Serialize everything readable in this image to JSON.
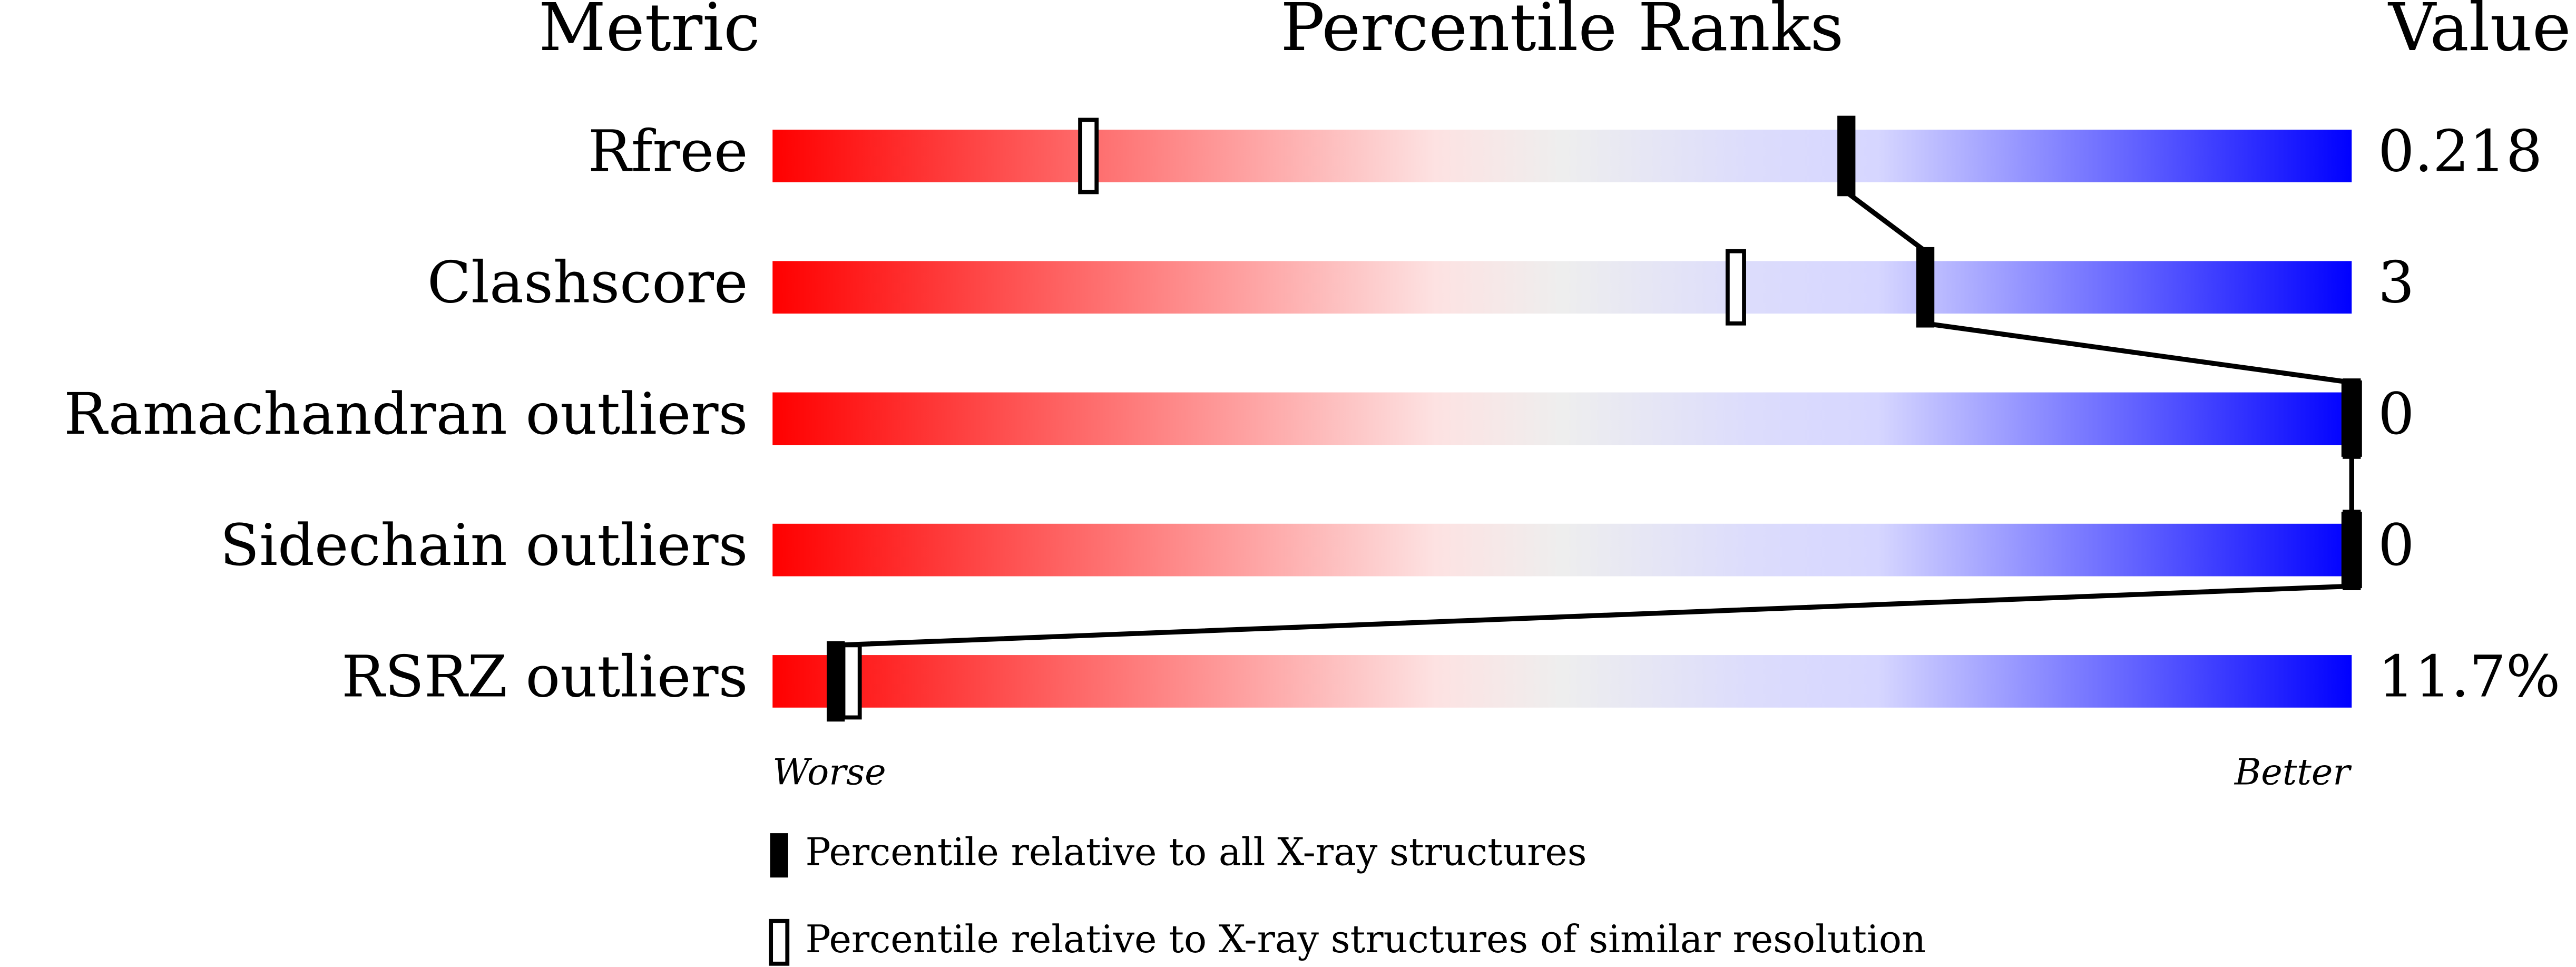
{
  "chart_data": {
    "type": "percentile",
    "title": "Percentile Ranks",
    "metric_header": "Metric",
    "value_header": "Value",
    "categories": [
      "Rfree",
      "Clashscore",
      "Ramachandran outliers",
      "Sidechain outliers",
      "RSRZ outliers"
    ],
    "value_labels": [
      "0.218",
      "3",
      "0",
      "0",
      "11.7%"
    ],
    "xlim": [
      0,
      100
    ],
    "x_low_label": "Worse",
    "x_high_label": "Better",
    "series": [
      {
        "name": "Percentile relative to all X-ray structures",
        "color": "#000000",
        "style": "filled",
        "values": [
          68,
          73,
          100,
          100,
          4
        ]
      },
      {
        "name": "Percentile relative to X-ray structures of similar resolution",
        "color": "#000000",
        "style": "open",
        "values": [
          20,
          61,
          100,
          100,
          5
        ]
      }
    ]
  }
}
